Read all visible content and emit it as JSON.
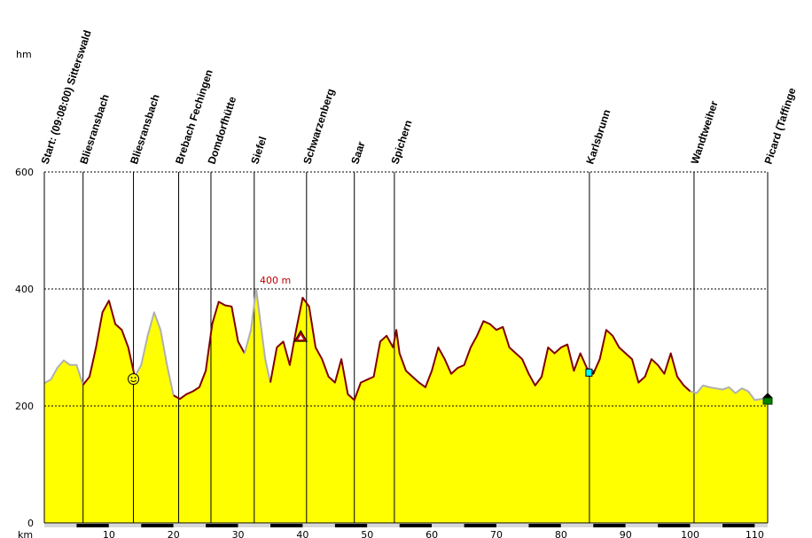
{
  "chart_data": {
    "type": "area",
    "title": "",
    "y_unit": "hm",
    "x_unit": "km",
    "xlim": [
      0,
      112
    ],
    "ylim": [
      0,
      600
    ],
    "y_ticks": [
      {
        "value": 0,
        "label": "0"
      },
      {
        "value": 200,
        "label": "200"
      },
      {
        "value": 400,
        "label": "400"
      },
      {
        "value": 600,
        "label": "600"
      }
    ],
    "x_ticks": [
      {
        "value": 10,
        "label": "10"
      },
      {
        "value": 20,
        "label": "20"
      },
      {
        "value": 30,
        "label": "30"
      },
      {
        "value": 40,
        "label": "40"
      },
      {
        "value": 50,
        "label": "50"
      },
      {
        "value": 60,
        "label": "60"
      },
      {
        "value": 70,
        "label": "70"
      },
      {
        "value": 80,
        "label": "80"
      },
      {
        "value": 90,
        "label": "90"
      },
      {
        "value": 100,
        "label": "100"
      },
      {
        "value": 110,
        "label": "110"
      }
    ],
    "grid": "horizontal dashed at 200, 400, 600",
    "fill_color": "#ffff00",
    "line_color_main": "#800000",
    "line_color_alt": "#b0b0b0",
    "peak_annotation": {
      "x": 32.8,
      "y": 400,
      "label": "400 m"
    },
    "waypoints": [
      {
        "x": 0,
        "label": "Start: (09:08:00) Sitterswald"
      },
      {
        "x": 6,
        "label": "Bliesransbach"
      },
      {
        "x": 13.8,
        "label": "Bliesransbach"
      },
      {
        "x": 20.8,
        "label": "Brebach Fechingen"
      },
      {
        "x": 25.8,
        "label": "Domdorfhütte"
      },
      {
        "x": 32.5,
        "label": "Siefel"
      },
      {
        "x": 40.6,
        "label": "Schwarzenberg"
      },
      {
        "x": 48,
        "label": "Saar"
      },
      {
        "x": 54.2,
        "label": "Spichern"
      },
      {
        "x": 84.4,
        "label": "Karlsbrunn"
      },
      {
        "x": 100.6,
        "label": "Wandtweiher"
      },
      {
        "x": 112,
        "label": "Picard (Taffinge"
      }
    ],
    "segments": [
      {
        "style": "alt",
        "points": [
          [
            0,
            239
          ],
          [
            1,
            245
          ],
          [
            2,
            265
          ],
          [
            3,
            278
          ],
          [
            4,
            270
          ],
          [
            5,
            270
          ],
          [
            6,
            236
          ]
        ]
      },
      {
        "style": "main",
        "points": [
          [
            6,
            236
          ],
          [
            7,
            250
          ],
          [
            8,
            300
          ],
          [
            9,
            360
          ],
          [
            10,
            380
          ],
          [
            11,
            340
          ],
          [
            12,
            330
          ],
          [
            13,
            300
          ],
          [
            14,
            250
          ]
        ]
      },
      {
        "style": "alt",
        "points": [
          [
            14,
            250
          ],
          [
            15,
            270
          ],
          [
            16,
            320
          ],
          [
            17,
            360
          ],
          [
            18,
            330
          ],
          [
            19,
            270
          ],
          [
            20,
            218
          ]
        ]
      },
      {
        "style": "main",
        "points": [
          [
            20,
            218
          ],
          [
            21,
            212
          ],
          [
            22,
            220
          ],
          [
            23,
            225
          ],
          [
            24,
            232
          ],
          [
            25,
            260
          ],
          [
            26,
            340
          ],
          [
            27,
            378
          ],
          [
            28,
            372
          ],
          [
            29,
            370
          ],
          [
            30,
            310
          ],
          [
            31,
            290
          ]
        ]
      },
      {
        "style": "alt",
        "points": [
          [
            31,
            290
          ],
          [
            32,
            330
          ],
          [
            32.8,
            400
          ],
          [
            33.5,
            340
          ],
          [
            34.2,
            280
          ],
          [
            35,
            240
          ]
        ]
      },
      {
        "style": "main",
        "points": [
          [
            35,
            240
          ],
          [
            36,
            300
          ],
          [
            37,
            310
          ],
          [
            38,
            270
          ],
          [
            39,
            330
          ],
          [
            40,
            385
          ],
          [
            41,
            370
          ],
          [
            42,
            300
          ],
          [
            43,
            280
          ],
          [
            44,
            250
          ],
          [
            45,
            240
          ],
          [
            46,
            280
          ],
          [
            47,
            220
          ],
          [
            48,
            210
          ],
          [
            49,
            240
          ],
          [
            50,
            245
          ],
          [
            51,
            250
          ],
          [
            52,
            310
          ],
          [
            53,
            320
          ],
          [
            54,
            300
          ],
          [
            54.5,
            330
          ],
          [
            55,
            290
          ],
          [
            56,
            260
          ],
          [
            57,
            250
          ],
          [
            58,
            240
          ],
          [
            59,
            232
          ],
          [
            60,
            260
          ],
          [
            61,
            300
          ],
          [
            62,
            280
          ],
          [
            63,
            255
          ],
          [
            64,
            265
          ],
          [
            65,
            270
          ],
          [
            66,
            300
          ],
          [
            67,
            320
          ],
          [
            68,
            345
          ],
          [
            69,
            340
          ],
          [
            70,
            330
          ],
          [
            71,
            335
          ],
          [
            72,
            300
          ],
          [
            73,
            290
          ],
          [
            74,
            280
          ],
          [
            75,
            255
          ],
          [
            76,
            235
          ],
          [
            77,
            250
          ],
          [
            78,
            300
          ],
          [
            79,
            290
          ],
          [
            80,
            300
          ],
          [
            81,
            305
          ],
          [
            82,
            260
          ],
          [
            83,
            290
          ],
          [
            84,
            265
          ],
          [
            85,
            255
          ],
          [
            86,
            280
          ],
          [
            87,
            330
          ],
          [
            88,
            320
          ],
          [
            89,
            300
          ],
          [
            90,
            290
          ],
          [
            91,
            280
          ],
          [
            92,
            240
          ],
          [
            93,
            250
          ],
          [
            94,
            280
          ],
          [
            95,
            270
          ],
          [
            96,
            255
          ],
          [
            97,
            290
          ],
          [
            98,
            250
          ],
          [
            99,
            235
          ],
          [
            100,
            225
          ]
        ]
      },
      {
        "style": "alt",
        "points": [
          [
            100,
            225
          ],
          [
            101,
            222
          ],
          [
            102,
            235
          ],
          [
            103,
            232
          ],
          [
            104,
            230
          ],
          [
            105,
            228
          ],
          [
            106,
            232
          ],
          [
            107,
            222
          ],
          [
            108,
            230
          ],
          [
            109,
            225
          ],
          [
            110,
            210
          ],
          [
            111,
            212
          ],
          [
            112,
            212
          ]
        ]
      }
    ],
    "markers": [
      {
        "x": 13.8,
        "y": 246,
        "icon": "smiley-icon"
      },
      {
        "x": 39.7,
        "y": 318,
        "icon": "warning-icon"
      },
      {
        "x": 84.4,
        "y": 257,
        "icon": "cup-icon"
      },
      {
        "x": 112,
        "y": 212,
        "icon": "finish-house-icon"
      }
    ]
  }
}
